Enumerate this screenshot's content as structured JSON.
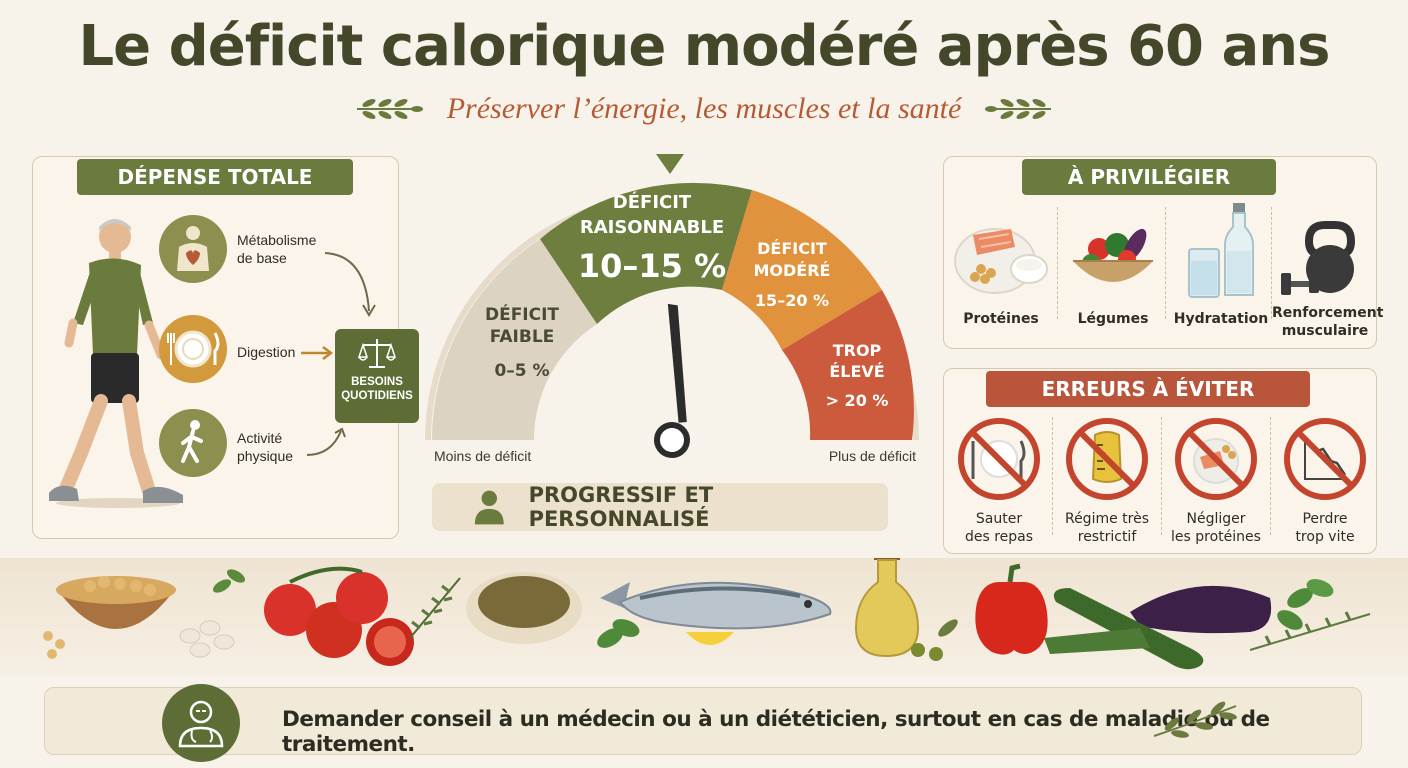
{
  "title": "Le déficit calorique modéré après 60 ans",
  "subtitle": "Préserver l’énergie, les muscles et la santé",
  "left_panel": {
    "banner": "DÉPENSE TOTALE",
    "items": [
      {
        "label_1": "Métabolisme",
        "label_2": "de base",
        "icon": "body-heart-icon"
      },
      {
        "label_1": "Digestion",
        "label_2": "",
        "icon": "plate-icon"
      },
      {
        "label_1": "Activité",
        "label_2": "physique",
        "icon": "walking-icon"
      }
    ],
    "result_1": "BESOINS",
    "result_2": "QUOTIDIENS"
  },
  "gauge": {
    "segments": [
      {
        "title_1": "DÉFICIT",
        "title_2": "FAIBLE",
        "range": "0–5 %",
        "color": "#ddd3c3"
      },
      {
        "title_1": "DÉFICIT",
        "title_2": "RAISONNABLE",
        "range": "10–15 %",
        "color": "#6e7e3e"
      },
      {
        "title_1": "DÉFICIT",
        "title_2": "MODÉRÉ",
        "range": "15–20 %",
        "color": "#e0923c"
      },
      {
        "title_1": "TROP",
        "title_2": "ÉLEVÉ",
        "range": "> 20 %",
        "color": "#cc5a3c"
      }
    ],
    "left_label": "Moins de déficit",
    "right_label": "Plus de déficit",
    "needle_value_percent": 12
  },
  "progressive": "PROGRESSIF ET PERSONNALISÉ",
  "privilegier": {
    "banner": "À PRIVILÉGIER",
    "items": [
      {
        "label_1": "Protéines",
        "label_2": ""
      },
      {
        "label_1": "Légumes",
        "label_2": ""
      },
      {
        "label_1": "Hydratation",
        "label_2": ""
      },
      {
        "label_1": "Renforcement",
        "label_2": "musculaire"
      }
    ]
  },
  "erreurs": {
    "banner": "ERREURS À ÉVITER",
    "items": [
      {
        "label_1": "Sauter",
        "label_2": "des repas"
      },
      {
        "label_1": "Régime très",
        "label_2": "restrictif"
      },
      {
        "label_1": "Négliger",
        "label_2": "les protéines"
      },
      {
        "label_1": "Perdre",
        "label_2": "trop vite"
      }
    ]
  },
  "footer": "Demander conseil à un médecin ou à un diététicien, surtout en cas de maladie ou de traitement.",
  "colors": {
    "olive": "#6b7a3d",
    "terracotta": "#b8553a",
    "orange": "#e0923c",
    "cream": "#faf4ea"
  }
}
